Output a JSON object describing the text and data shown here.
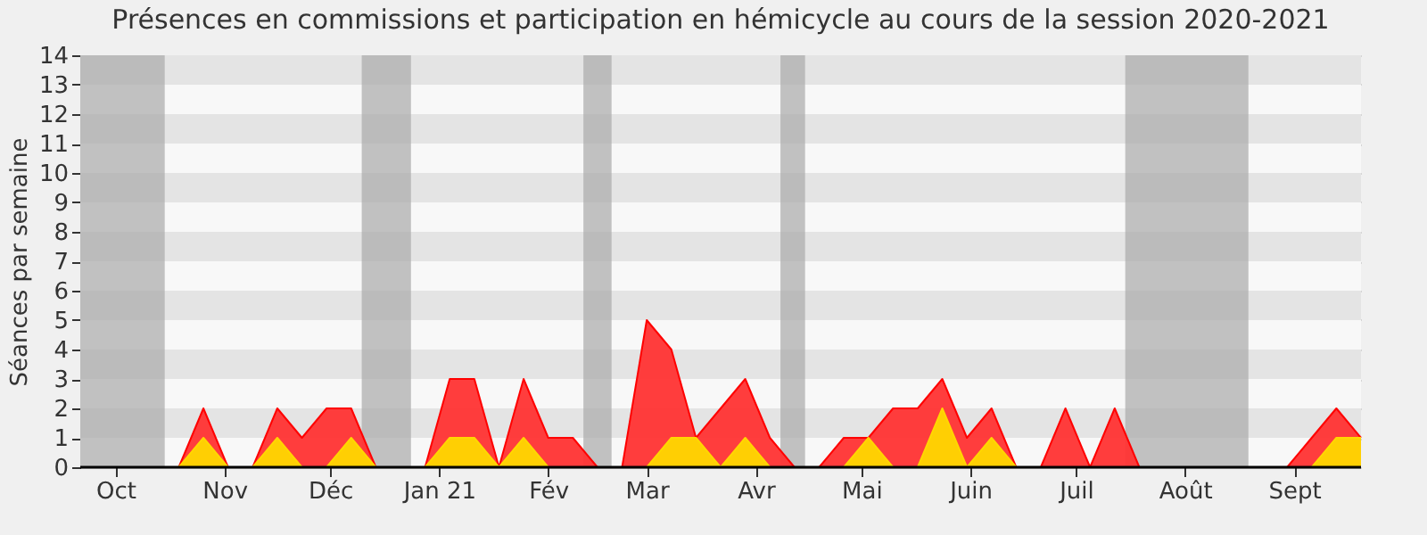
{
  "chart_data": {
    "type": "area",
    "title": "Présences en commissions et participation en hémicycle au cours de la session 2020-2021",
    "ylabel": "Séances par semaine",
    "x": [
      "2020-09-21",
      "2020-09-28",
      "2020-10-05",
      "2020-10-12",
      "2020-10-19",
      "2020-10-26",
      "2020-11-02",
      "2020-11-09",
      "2020-11-16",
      "2020-11-23",
      "2020-11-30",
      "2020-12-07",
      "2020-12-14",
      "2020-12-21",
      "2020-12-28",
      "2021-01-04",
      "2021-01-11",
      "2021-01-18",
      "2021-01-25",
      "2021-02-01",
      "2021-02-08",
      "2021-02-15",
      "2021-02-22",
      "2021-03-01",
      "2021-03-08",
      "2021-03-15",
      "2021-03-22",
      "2021-03-29",
      "2021-04-05",
      "2021-04-12",
      "2021-04-19",
      "2021-04-26",
      "2021-05-03",
      "2021-05-10",
      "2021-05-17",
      "2021-05-24",
      "2021-05-31",
      "2021-06-07",
      "2021-06-14",
      "2021-06-21",
      "2021-06-28",
      "2021-07-05",
      "2021-07-12",
      "2021-07-19",
      "2021-07-26",
      "2021-08-02",
      "2021-08-09",
      "2021-08-16",
      "2021-08-23",
      "2021-08-30",
      "2021-09-06",
      "2021-09-13",
      "2021-09-20"
    ],
    "series": [
      {
        "color": "#ff3333",
        "values": [
          0,
          0,
          0,
          0,
          0,
          2,
          0,
          0,
          2,
          1,
          2,
          2,
          0,
          0,
          0,
          3,
          3,
          0,
          3,
          1,
          1,
          0,
          0,
          5,
          4,
          1,
          2,
          3,
          1,
          0,
          0,
          1,
          1,
          2,
          2,
          3,
          1,
          2,
          0,
          0,
          2,
          0,
          2,
          0,
          0,
          0,
          0,
          0,
          0,
          0,
          1,
          2,
          1
        ]
      },
      {
        "color": "#ffd700",
        "values": [
          0,
          0,
          0,
          0,
          0,
          1,
          0,
          0,
          1,
          0,
          0,
          1,
          0,
          0,
          0,
          1,
          1,
          0,
          1,
          0,
          0,
          0,
          0,
          0,
          1,
          1,
          0,
          1,
          0,
          0,
          0,
          0,
          1,
          0,
          0,
          2,
          0,
          1,
          0,
          0,
          0,
          0,
          0,
          0,
          0,
          0,
          0,
          0,
          0,
          0,
          0,
          1,
          1
        ]
      }
    ],
    "xlim": [
      "2020-09-21",
      "2021-09-20"
    ],
    "xticks": [
      {
        "value": "2020-10-01",
        "label": "Oct"
      },
      {
        "value": "2020-11-01",
        "label": "Nov"
      },
      {
        "value": "2020-12-01",
        "label": "Déc"
      },
      {
        "value": "2021-01-01",
        "label": "Jan 21"
      },
      {
        "value": "2021-02-01",
        "label": "Fév"
      },
      {
        "value": "2021-03-01",
        "label": "Mar"
      },
      {
        "value": "2021-04-01",
        "label": "Avr"
      },
      {
        "value": "2021-05-01",
        "label": "Mai"
      },
      {
        "value": "2021-06-01",
        "label": "Juin"
      },
      {
        "value": "2021-07-01",
        "label": "Juil"
      },
      {
        "value": "2021-08-01",
        "label": "Août"
      },
      {
        "value": "2021-09-01",
        "label": "Sept"
      }
    ],
    "ylim": [
      0,
      14
    ],
    "yticks": [
      0,
      1,
      2,
      3,
      4,
      5,
      6,
      7,
      8,
      9,
      10,
      11,
      12,
      13,
      14
    ],
    "grid": "y",
    "bands": [
      {
        "axis": "x",
        "from": "2020-09-21",
        "to": "2020-10-15",
        "color": "#aaaaaa"
      },
      {
        "axis": "x",
        "from": "2020-12-10",
        "to": "2020-12-24",
        "color": "#aaaaaa"
      },
      {
        "axis": "x",
        "from": "2021-02-11",
        "to": "2021-02-19",
        "color": "#aaaaaa"
      },
      {
        "axis": "x",
        "from": "2021-04-08",
        "to": "2021-04-15",
        "color": "#aaaaaa"
      },
      {
        "axis": "x",
        "from": "2021-07-15",
        "to": "2021-08-19",
        "color": "#aaaaaa"
      }
    ]
  }
}
